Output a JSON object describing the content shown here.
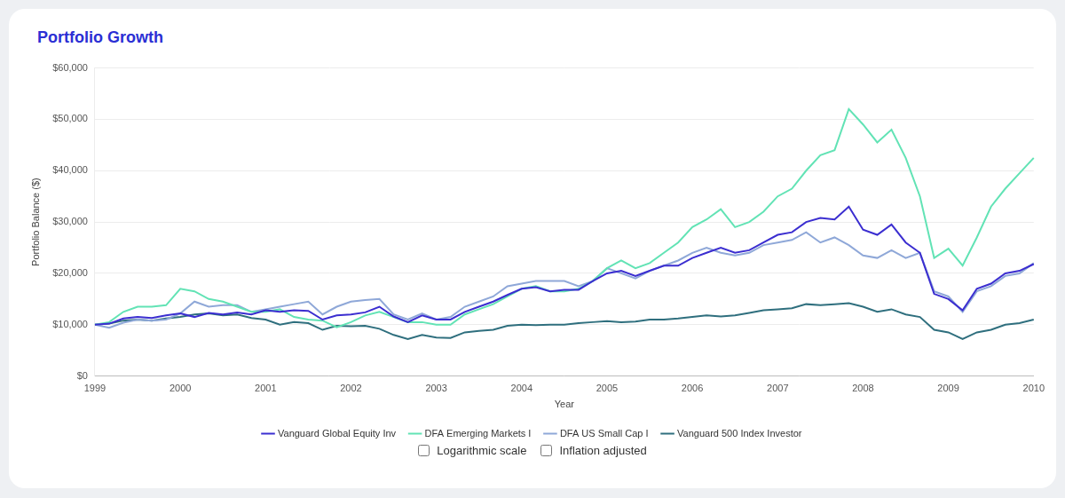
{
  "chart_data": {
    "type": "line",
    "title": "Portfolio Growth",
    "x_label": "Year",
    "y_label": "Portfolio Balance ($)",
    "categories": [
      "1999",
      null,
      null,
      null,
      null,
      null,
      "2000",
      null,
      null,
      null,
      null,
      null,
      "2001",
      null,
      null,
      null,
      null,
      null,
      "2002",
      null,
      null,
      null,
      null,
      null,
      "2003",
      null,
      null,
      null,
      null,
      null,
      "2004",
      null,
      null,
      null,
      null,
      null,
      "2005",
      null,
      null,
      null,
      null,
      null,
      "2006",
      null,
      null,
      null,
      null,
      null,
      "2007",
      null,
      null,
      null,
      null,
      null,
      "2008",
      null,
      null,
      null,
      null,
      null,
      "2009",
      null,
      null,
      null,
      null,
      null,
      "2010"
    ],
    "series": [
      {
        "name": "Vanguard Global Equity Inv",
        "color": "#3b2ed0",
        "values": [
          10000,
          10200,
          11200,
          11500,
          11300,
          11800,
          12200,
          11500,
          12300,
          12000,
          12400,
          12000,
          12800,
          12500,
          12800,
          12700,
          11000,
          11800,
          12000,
          12400,
          13500,
          11600,
          10500,
          11800,
          11000,
          11000,
          12500,
          13500,
          14500,
          15800,
          17000,
          17300,
          16500,
          16800,
          16800,
          18500,
          20000,
          20500,
          19500,
          20500,
          21500,
          21500,
          23000,
          24000,
          25000,
          24000,
          24500,
          26000,
          27500,
          28000,
          30000,
          30800,
          30500,
          33000,
          28500,
          27500,
          29500,
          26000,
          24000,
          16000,
          15000,
          12800,
          17000,
          18000,
          20000,
          20500,
          21800
        ]
      },
      {
        "name": "DFA Emerging Markets I",
        "color": "#62e3b5",
        "values": [
          10000,
          10500,
          12500,
          13500,
          13500,
          13800,
          17000,
          16500,
          15000,
          14500,
          13500,
          12500,
          12500,
          13000,
          11500,
          11000,
          10800,
          9500,
          10500,
          11800,
          12500,
          11500,
          10500,
          10500,
          10000,
          10000,
          12000,
          13000,
          14000,
          15500,
          17000,
          17500,
          16500,
          16500,
          17000,
          18500,
          21000,
          22500,
          21000,
          22000,
          24000,
          26000,
          29000,
          30500,
          32500,
          29000,
          30000,
          32000,
          35000,
          36500,
          40000,
          43000,
          44000,
          52000,
          49000,
          45500,
          48000,
          42500,
          35000,
          23000,
          24800,
          21500,
          27000,
          33000,
          36500,
          39500,
          42500
        ]
      },
      {
        "name": "DFA US Small Cap I",
        "color": "#8fa8d8",
        "values": [
          10000,
          9400,
          10400,
          11000,
          10800,
          11000,
          12200,
          14500,
          13500,
          13800,
          13800,
          12500,
          13000,
          13500,
          14000,
          14500,
          12000,
          13500,
          14500,
          14800,
          15000,
          12000,
          11000,
          12200,
          11000,
          11500,
          13500,
          14500,
          15500,
          17500,
          18000,
          18500,
          18500,
          18500,
          17500,
          18500,
          21000,
          20000,
          19000,
          20500,
          21500,
          22500,
          24000,
          25000,
          24000,
          23500,
          24000,
          25500,
          26000,
          26500,
          28000,
          26000,
          27000,
          25500,
          23500,
          23000,
          24500,
          23000,
          24000,
          16500,
          15500,
          12500,
          16500,
          17500,
          19500,
          20000,
          22000
        ]
      },
      {
        "name": "Vanguard 500 Index Investor",
        "color": "#2f6f7e",
        "values": [
          10000,
          10200,
          10800,
          11000,
          10800,
          11200,
          11500,
          12000,
          12200,
          11800,
          12000,
          11300,
          11000,
          10000,
          10500,
          10300,
          9000,
          9800,
          9700,
          9800,
          9200,
          8000,
          7200,
          8000,
          7500,
          7400,
          8500,
          8800,
          9000,
          9800,
          10000,
          9900,
          10000,
          10000,
          10300,
          10500,
          10700,
          10500,
          10600,
          11000,
          11000,
          11200,
          11500,
          11800,
          11600,
          11800,
          12300,
          12800,
          13000,
          13200,
          14000,
          13800,
          14000,
          14200,
          13500,
          12500,
          13000,
          12000,
          11500,
          9000,
          8500,
          7200,
          8500,
          9000,
          10000,
          10300,
          11000
        ]
      }
    ],
    "ylim": [
      0,
      60000
    ],
    "yticks": [
      {
        "value": 0,
        "label": "$0"
      },
      {
        "value": 10000,
        "label": "$10,000"
      },
      {
        "value": 20000,
        "label": "$20,000"
      },
      {
        "value": 30000,
        "label": "$30,000"
      },
      {
        "value": 40000,
        "label": "$40,000"
      },
      {
        "value": 50000,
        "label": "$50,000"
      },
      {
        "value": 60000,
        "label": "$60,000"
      }
    ],
    "grid": true,
    "legend": "bottom"
  },
  "controls": [
    "Logarithmic scale",
    "Inflation adjusted"
  ]
}
